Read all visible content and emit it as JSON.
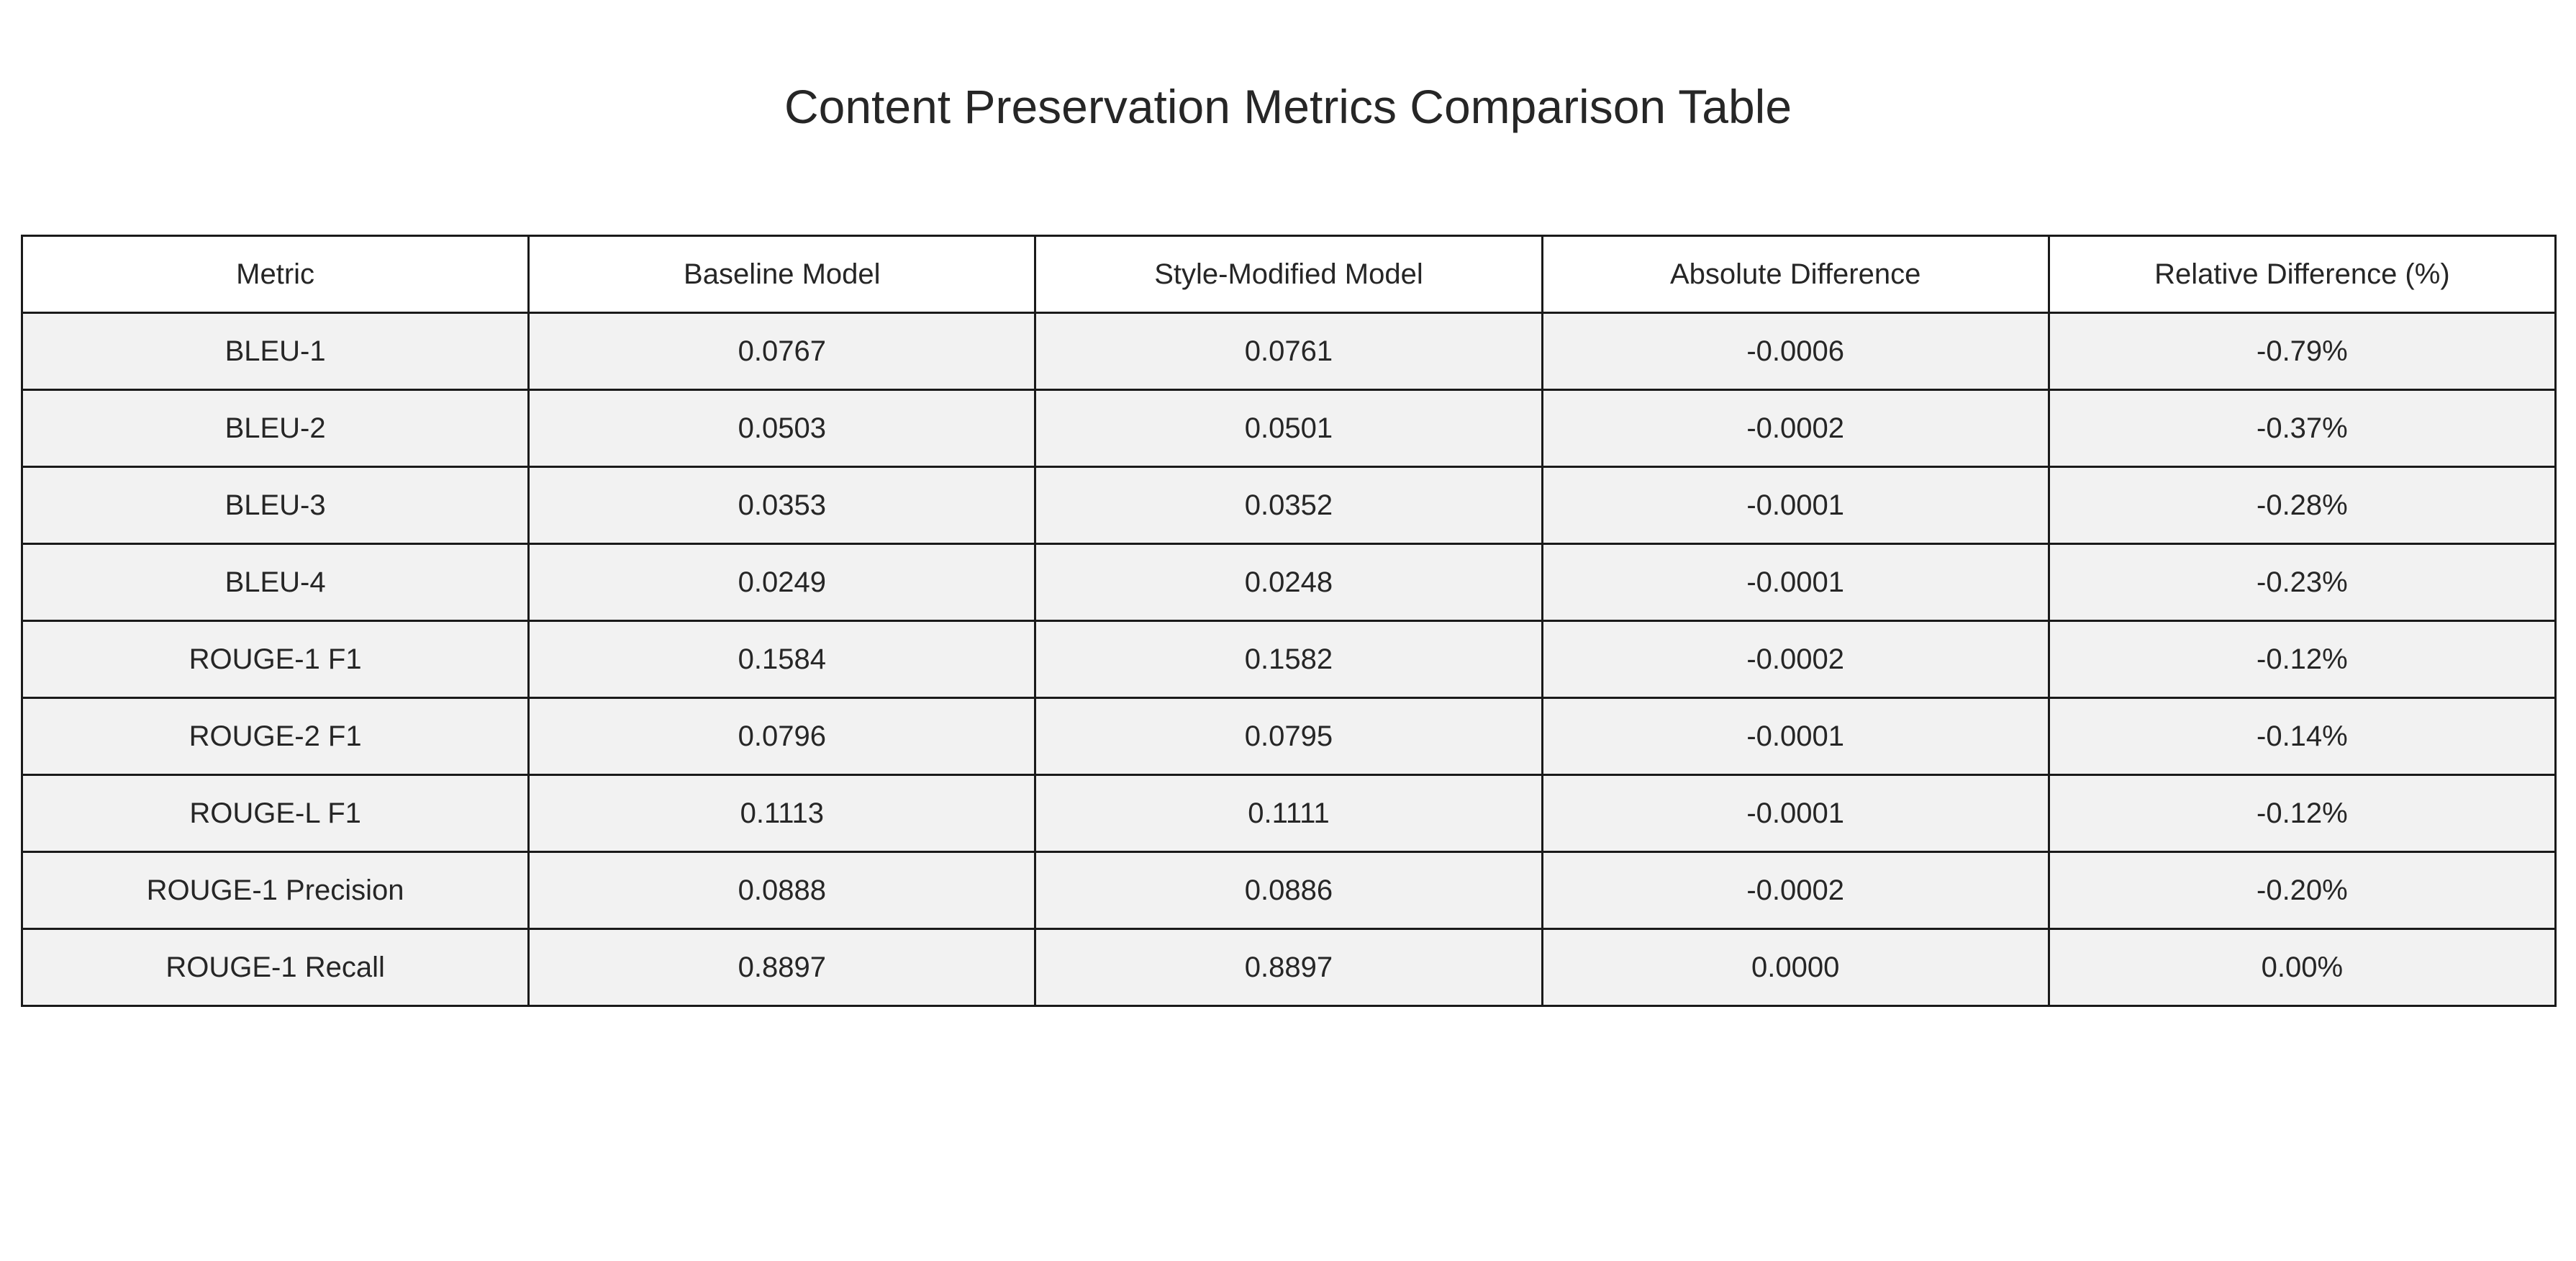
{
  "chart_data": {
    "type": "table",
    "title": "Content Preservation Metrics Comparison Table",
    "columns": [
      "Metric",
      "Baseline Model",
      "Style-Modified Model",
      "Absolute Difference",
      "Relative Difference (%)"
    ],
    "rows": [
      [
        "BLEU-1",
        "0.0767",
        "0.0761",
        "-0.0006",
        "-0.79%"
      ],
      [
        "BLEU-2",
        "0.0503",
        "0.0501",
        "-0.0002",
        "-0.37%"
      ],
      [
        "BLEU-3",
        "0.0353",
        "0.0352",
        "-0.0001",
        "-0.28%"
      ],
      [
        "BLEU-4",
        "0.0249",
        "0.0248",
        "-0.0001",
        "-0.23%"
      ],
      [
        "ROUGE-1 F1",
        "0.1584",
        "0.1582",
        "-0.0002",
        "-0.12%"
      ],
      [
        "ROUGE-2 F1",
        "0.0796",
        "0.0795",
        "-0.0001",
        "-0.14%"
      ],
      [
        "ROUGE-L F1",
        "0.1113",
        "0.1111",
        "-0.0001",
        "-0.12%"
      ],
      [
        "ROUGE-1 Precision",
        "0.0888",
        "0.0886",
        "-0.0002",
        "-0.20%"
      ],
      [
        "ROUGE-1 Recall",
        "0.8897",
        "0.8897",
        "0.0000",
        "0.00%"
      ]
    ],
    "header_background": "#ffffff",
    "cell_background": "#f2f2f2",
    "border_color": "#1a1a1a",
    "text_color": "#262626"
  }
}
